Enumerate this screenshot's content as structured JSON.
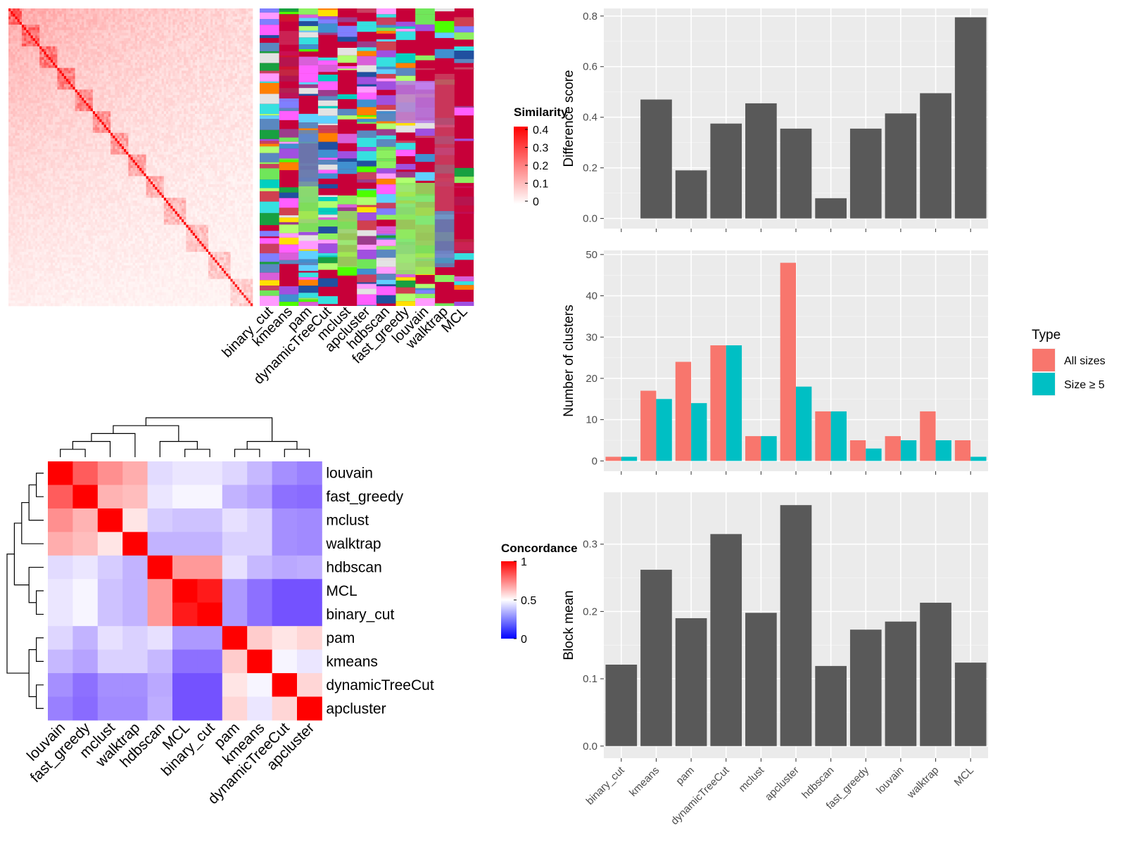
{
  "chart_data": [
    {
      "type": "heatmap",
      "panel": "similarity-heatmap",
      "legend_title": "Similarity",
      "legend_ticks": [
        "0.4",
        "0.3",
        "0.2",
        "0.1",
        "0"
      ],
      "legend_range": [
        0,
        0.4
      ],
      "legend_colors": [
        "#ffffff",
        "#ff0000"
      ],
      "methods": [
        "binary_cut",
        "kmeans",
        "pam",
        "dynamicTreeCut",
        "mclust",
        "apcluster",
        "hdbscan",
        "fast_greedy",
        "louvain",
        "walktrap",
        "MCL"
      ]
    },
    {
      "type": "heatmap",
      "panel": "concordance-heatmap",
      "legend_title": "Concordance",
      "legend_ticks": [
        "1",
        "0.5",
        "0"
      ],
      "legend_range": [
        0,
        1
      ],
      "legend_colors": [
        "#0000ff",
        "#ffffff",
        "#ff0000"
      ],
      "rows": [
        "louvain",
        "fast_greedy",
        "mclust",
        "walktrap",
        "hdbscan",
        "MCL",
        "binary_cut",
        "pam",
        "kmeans",
        "dynamicTreeCut",
        "apcluster"
      ],
      "columns": [
        "louvain",
        "fast_greedy",
        "mclust",
        "walktrap",
        "hdbscan",
        "MCL",
        "binary_cut",
        "pam",
        "kmeans",
        "dynamicTreeCut",
        "apcluster"
      ],
      "values": [
        [
          1.0,
          0.82,
          0.72,
          0.66,
          0.43,
          0.45,
          0.45,
          0.42,
          0.36,
          0.28,
          0.25
        ],
        [
          0.82,
          1.0,
          0.65,
          0.63,
          0.45,
          0.48,
          0.48,
          0.35,
          0.32,
          0.22,
          0.21
        ],
        [
          0.72,
          0.65,
          1.0,
          0.55,
          0.4,
          0.38,
          0.38,
          0.44,
          0.41,
          0.28,
          0.27
        ],
        [
          0.66,
          0.63,
          0.55,
          1.0,
          0.35,
          0.35,
          0.35,
          0.41,
          0.41,
          0.28,
          0.27
        ],
        [
          0.43,
          0.45,
          0.4,
          0.35,
          1.0,
          0.7,
          0.7,
          0.44,
          0.36,
          0.33,
          0.34
        ],
        [
          0.45,
          0.48,
          0.38,
          0.35,
          0.7,
          1.0,
          0.95,
          0.3,
          0.22,
          0.16,
          0.16
        ],
        [
          0.45,
          0.48,
          0.38,
          0.35,
          0.7,
          0.95,
          1.0,
          0.3,
          0.22,
          0.16,
          0.16
        ],
        [
          0.42,
          0.35,
          0.44,
          0.41,
          0.44,
          0.3,
          0.3,
          1.0,
          0.6,
          0.55,
          0.58
        ],
        [
          0.36,
          0.32,
          0.41,
          0.41,
          0.36,
          0.22,
          0.22,
          0.6,
          1.0,
          0.48,
          0.45
        ],
        [
          0.28,
          0.22,
          0.28,
          0.28,
          0.33,
          0.16,
          0.16,
          0.55,
          0.48,
          1.0,
          0.58
        ],
        [
          0.25,
          0.21,
          0.27,
          0.27,
          0.34,
          0.16,
          0.16,
          0.58,
          0.45,
          0.58,
          1.0
        ]
      ]
    },
    {
      "type": "bar",
      "panel": "difference-score",
      "categories": [
        "binary_cut",
        "kmeans",
        "pam",
        "dynamicTreeCut",
        "mclust",
        "apcluster",
        "hdbscan",
        "fast_greedy",
        "louvain",
        "walktrap",
        "MCL"
      ],
      "values": [
        0.0,
        0.47,
        0.19,
        0.375,
        0.455,
        0.355,
        0.08,
        0.355,
        0.415,
        0.495,
        0.795
      ],
      "ylabel": "Difference score",
      "ylim": [
        -0.04,
        0.83
      ],
      "yticks": [
        0,
        0.2,
        0.4,
        0.6,
        0.8
      ],
      "ytick_labels": [
        "0.0",
        "0.2",
        "0.4",
        "0.6",
        "0.8"
      ],
      "bar_color": "#595959",
      "background": "#ebebeb"
    },
    {
      "type": "bar",
      "panel": "number-of-clusters",
      "categories": [
        "binary_cut",
        "kmeans",
        "pam",
        "dynamicTreeCut",
        "mclust",
        "apcluster",
        "hdbscan",
        "fast_greedy",
        "louvain",
        "walktrap",
        "MCL"
      ],
      "series": [
        {
          "name": "All sizes",
          "color": "#f8766d",
          "values": [
            1,
            17,
            24,
            28,
            6,
            48,
            12,
            5,
            6,
            12,
            5
          ]
        },
        {
          "name": "Size ≥ 5",
          "color": "#00bfc4",
          "values": [
            1,
            15,
            14,
            28,
            6,
            18,
            12,
            3,
            5,
            5,
            1
          ]
        }
      ],
      "ylabel": "Number of clusters",
      "ylim": [
        -2.5,
        51
      ],
      "yticks": [
        0,
        10,
        20,
        30,
        40,
        50
      ],
      "ytick_labels": [
        "0",
        "10",
        "20",
        "30",
        "40",
        "50"
      ],
      "legend_title": "Type",
      "legend": "right",
      "background": "#ebebeb"
    },
    {
      "type": "bar",
      "panel": "block-mean",
      "categories": [
        "binary_cut",
        "kmeans",
        "pam",
        "dynamicTreeCut",
        "mclust",
        "apcluster",
        "hdbscan",
        "fast_greedy",
        "louvain",
        "walktrap",
        "MCL"
      ],
      "values": [
        0.121,
        0.262,
        0.19,
        0.315,
        0.198,
        0.358,
        0.119,
        0.173,
        0.185,
        0.213,
        0.124
      ],
      "ylabel": "Block mean",
      "ylim": [
        -0.018,
        0.377
      ],
      "yticks": [
        0,
        0.1,
        0.2,
        0.3
      ],
      "ytick_labels": [
        "0.0",
        "0.1",
        "0.2",
        "0.3"
      ],
      "bar_color": "#595959",
      "background": "#ebebeb"
    }
  ]
}
